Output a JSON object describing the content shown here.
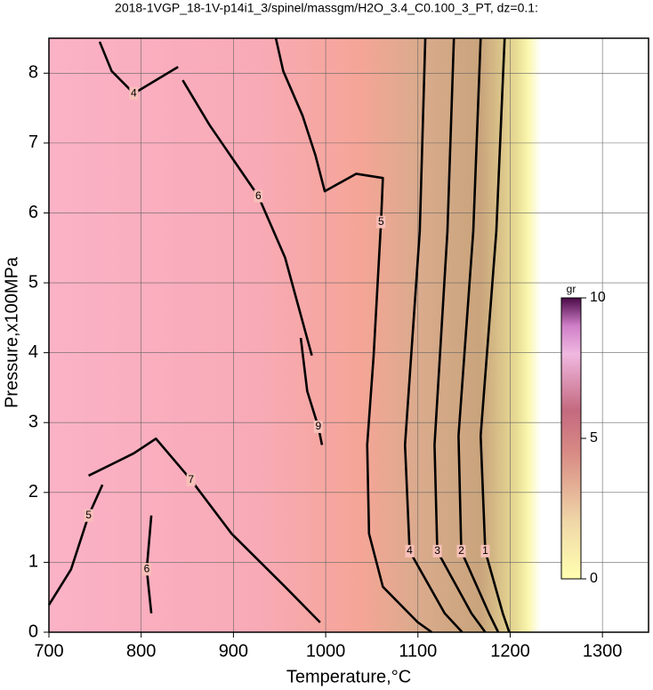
{
  "chart_data": {
    "type": "contour",
    "title": "2018-1VGP_18-1V-p14i1_3/spinel/massgm/H2O_3.4_C0.100_3_PT, dz=0.1:",
    "x_label": "Temperature,°C",
    "y_label": "Pressure,x100MPa",
    "xlim": [
      700,
      1350
    ],
    "xticks": [
      700,
      800,
      900,
      1000,
      1100,
      1200,
      1300
    ],
    "ylim": [
      0,
      8.5
    ],
    "yticks": [
      0,
      1,
      2,
      3,
      4,
      5,
      6,
      7,
      8
    ],
    "grid": true,
    "contours": [
      {
        "level": 6,
        "x": [
          845,
          874,
          927,
          956,
          985
        ],
        "y": [
          7.9,
          7.26,
          6.24,
          5.36,
          3.96
        ]
      },
      {
        "level": 9,
        "x": [
          973,
          980,
          992,
          996
        ],
        "y": [
          4.21,
          3.45,
          2.94,
          2.68
        ]
      },
      {
        "level": 5,
        "x": [
          946,
          954,
          975,
          989,
          999,
          1033,
          1062,
          1060,
          1052,
          1045,
          1047,
          1062,
          1100,
          1115
        ],
        "y": [
          8.5,
          8.03,
          7.39,
          6.82,
          6.31,
          6.56,
          6.5,
          5.87,
          3.96,
          2.68,
          1.41,
          0.65,
          0.14,
          0
        ]
      },
      {
        "level": 4,
        "x": [
          1108,
          1102,
          1086,
          1091,
          1129,
          1148
        ],
        "y": [
          8.5,
          5.74,
          2.68,
          1.16,
          0.27,
          0
        ]
      },
      {
        "level": 3,
        "x": [
          1139,
          1132,
          1118,
          1121,
          1158,
          1173
        ],
        "y": [
          8.5,
          5.74,
          2.68,
          1.16,
          0.27,
          0
        ]
      },
      {
        "level": 2,
        "x": [
          1168,
          1160,
          1144,
          1147,
          1177,
          1187
        ],
        "y": [
          8.5,
          5.74,
          2.81,
          1.16,
          0.27,
          0
        ]
      },
      {
        "level": 1,
        "x": [
          1194,
          1185,
          1168,
          1173,
          1192,
          1199
        ],
        "y": [
          8.5,
          5.74,
          2.81,
          1.16,
          0.27,
          0
        ]
      },
      {
        "level": 5,
        "x": [
          700,
          724,
          743,
          758
        ],
        "y": [
          0.39,
          0.9,
          1.67,
          2.11
        ]
      },
      {
        "level": 6,
        "x": [
          811,
          806,
          811
        ],
        "y": [
          0.27,
          0.9,
          1.67
        ]
      },
      {
        "level": 7,
        "x": [
          743,
          792,
          816,
          854,
          898,
          956,
          994
        ],
        "y": [
          2.24,
          2.56,
          2.77,
          2.18,
          1.41,
          0.65,
          0.14
        ]
      },
      {
        "level": 4,
        "x": [
          755,
          768,
          792,
          840
        ],
        "y": [
          8.45,
          8.03,
          7.71,
          8.09
        ]
      }
    ],
    "colorbar": {
      "label": "gr",
      "lim": [
        0,
        10
      ],
      "ticks": [
        0,
        5,
        10
      ]
    }
  }
}
